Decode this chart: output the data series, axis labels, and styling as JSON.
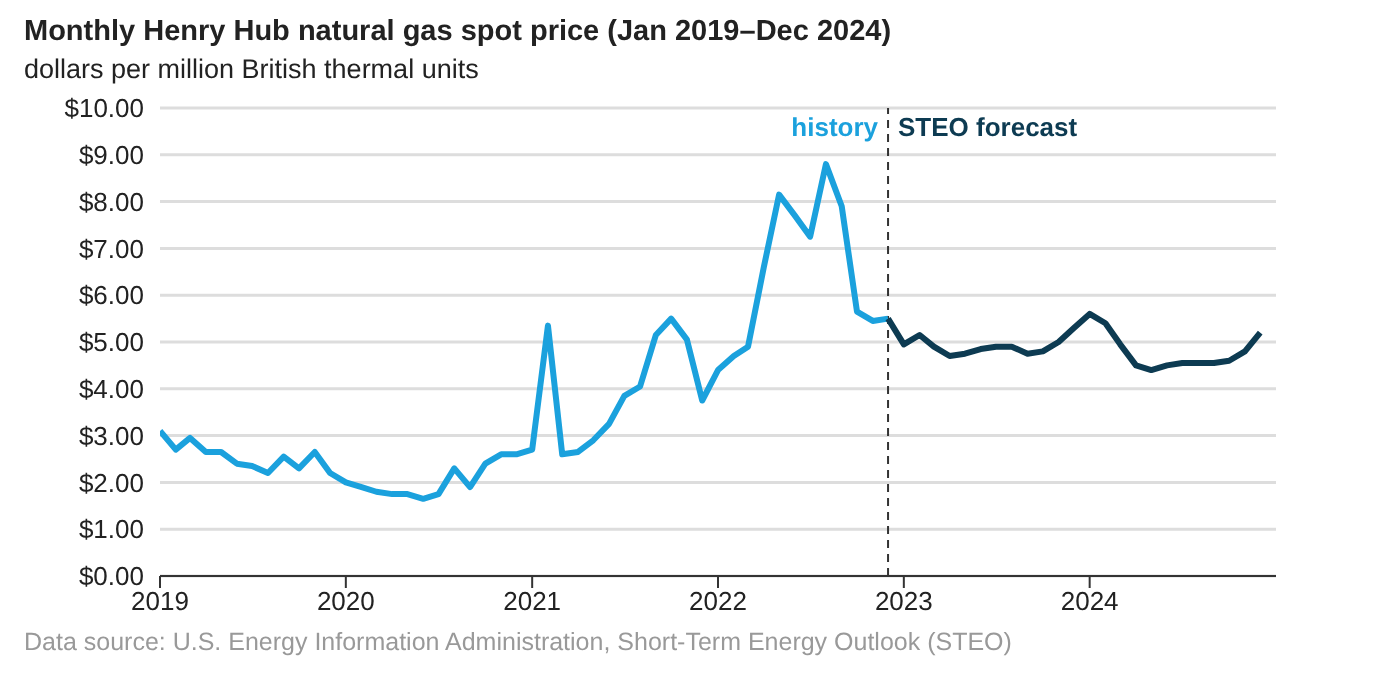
{
  "chart_data": {
    "type": "line",
    "title": "Monthly Henry Hub natural gas spot price (Jan 2019–Dec 2024)",
    "subtitle": "dollars per million British thermal units",
    "series": [
      {
        "name": "history",
        "color": "#1ba1dd",
        "x": [
          "2019-01",
          "2019-02",
          "2019-03",
          "2019-04",
          "2019-05",
          "2019-06",
          "2019-07",
          "2019-08",
          "2019-09",
          "2019-10",
          "2019-11",
          "2019-12",
          "2020-01",
          "2020-02",
          "2020-03",
          "2020-04",
          "2020-05",
          "2020-06",
          "2020-07",
          "2020-08",
          "2020-09",
          "2020-10",
          "2020-11",
          "2020-12",
          "2021-01",
          "2021-02",
          "2021-03",
          "2021-04",
          "2021-05",
          "2021-06",
          "2021-07",
          "2021-08",
          "2021-09",
          "2021-10",
          "2021-11",
          "2021-12",
          "2022-01",
          "2022-02",
          "2022-03",
          "2022-04",
          "2022-05",
          "2022-06",
          "2022-07",
          "2022-08",
          "2022-09",
          "2022-10",
          "2022-11",
          "2022-12"
        ],
        "values": [
          3.1,
          2.7,
          2.95,
          2.65,
          2.65,
          2.4,
          2.35,
          2.2,
          2.55,
          2.3,
          2.65,
          2.2,
          2.0,
          1.9,
          1.8,
          1.75,
          1.75,
          1.65,
          1.75,
          2.3,
          1.9,
          2.4,
          2.6,
          2.6,
          2.7,
          5.35,
          2.6,
          2.65,
          2.9,
          3.25,
          3.85,
          4.05,
          5.15,
          5.5,
          5.05,
          3.75,
          4.4,
          4.7,
          4.9,
          6.6,
          8.15,
          7.7,
          7.25,
          8.8,
          7.9,
          5.65,
          5.45,
          5.5
        ]
      },
      {
        "name": "STEO forecast",
        "color": "#0d3b52",
        "x": [
          "2022-12",
          "2023-01",
          "2023-02",
          "2023-03",
          "2023-04",
          "2023-05",
          "2023-06",
          "2023-07",
          "2023-08",
          "2023-09",
          "2023-10",
          "2023-11",
          "2023-12",
          "2024-01",
          "2024-02",
          "2024-03",
          "2024-04",
          "2024-05",
          "2024-06",
          "2024-07",
          "2024-08",
          "2024-09",
          "2024-10",
          "2024-11",
          "2024-12"
        ],
        "values": [
          5.5,
          4.95,
          5.15,
          4.9,
          4.7,
          4.75,
          4.85,
          4.9,
          4.9,
          4.75,
          4.8,
          5.0,
          5.3,
          5.6,
          5.4,
          4.95,
          4.5,
          4.4,
          4.5,
          4.55,
          4.55,
          4.55,
          4.6,
          4.8,
          5.2
        ]
      }
    ],
    "xlim": [
      "2019-01",
      "2025-01"
    ],
    "xticks": [
      "2019",
      "2020",
      "2021",
      "2022",
      "2023",
      "2024"
    ],
    "ylim": [
      0,
      10
    ],
    "yticks": [
      {
        "value": 0,
        "label": "$0.00"
      },
      {
        "value": 1,
        "label": "$1.00"
      },
      {
        "value": 2,
        "label": "$2.00"
      },
      {
        "value": 3,
        "label": "$3.00"
      },
      {
        "value": 4,
        "label": "$4.00"
      },
      {
        "value": 5,
        "label": "$5.00"
      },
      {
        "value": 6,
        "label": "$6.00"
      },
      {
        "value": 7,
        "label": "$7.00"
      },
      {
        "value": 8,
        "label": "$8.00"
      },
      {
        "value": 9,
        "label": "$9.00"
      },
      {
        "value": 10,
        "label": "$10.00"
      }
    ],
    "ref_lines": [
      {
        "axis": "x",
        "value": "2022-12",
        "color": "#333333",
        "line_style": "dashed"
      }
    ],
    "grid": "y",
    "marker": "none",
    "line_style": "solid",
    "annotations": [
      "Data source: U.S. Energy Information Administration, Short-Term Energy Outlook (STEO)"
    ]
  }
}
